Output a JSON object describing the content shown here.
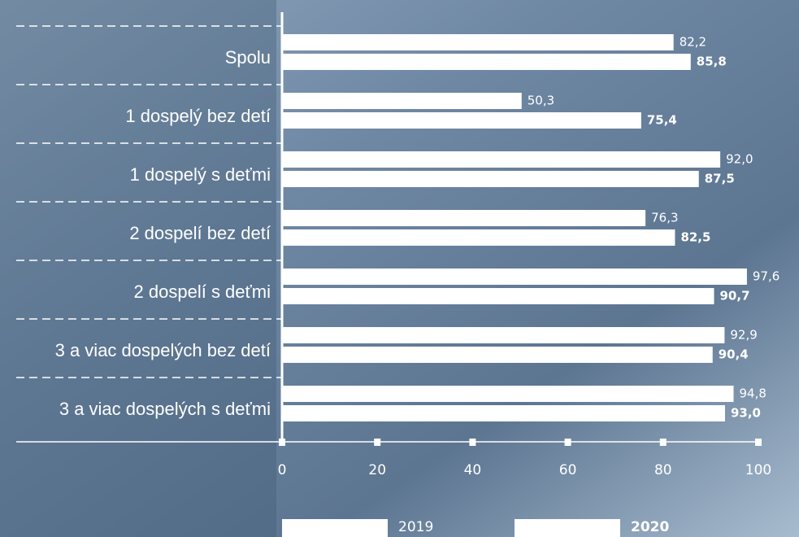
{
  "chart_data": {
    "type": "bar",
    "orientation": "horizontal",
    "categories": [
      "Spolu",
      "1 dospelý bez detí",
      "1 dospelý s deťmi",
      "2 dospelí bez detí",
      "2 dospelí s deťmi",
      "3 a viac dospelých bez detí",
      "3 a viac dospelých s deťmi"
    ],
    "series": [
      {
        "name": "2019",
        "color": "#ffffff",
        "values": [
          82.2,
          50.3,
          92.0,
          76.3,
          97.6,
          92.9,
          94.8
        ],
        "value_labels": [
          "82,2",
          "50,3",
          "92,0",
          "76,3",
          "97,6",
          "92,9",
          "94,8"
        ]
      },
      {
        "name": "2020",
        "color": "#ffffff",
        "values": [
          85.8,
          75.4,
          87.5,
          82.5,
          90.7,
          90.4,
          93.0
        ],
        "value_labels": [
          "85,8",
          "75,4",
          "87,5",
          "82,5",
          "90,7",
          "90,4",
          "93,0"
        ]
      }
    ],
    "xlim": [
      0,
      100
    ],
    "xticks": [
      0,
      20,
      40,
      60,
      80,
      100
    ]
  }
}
